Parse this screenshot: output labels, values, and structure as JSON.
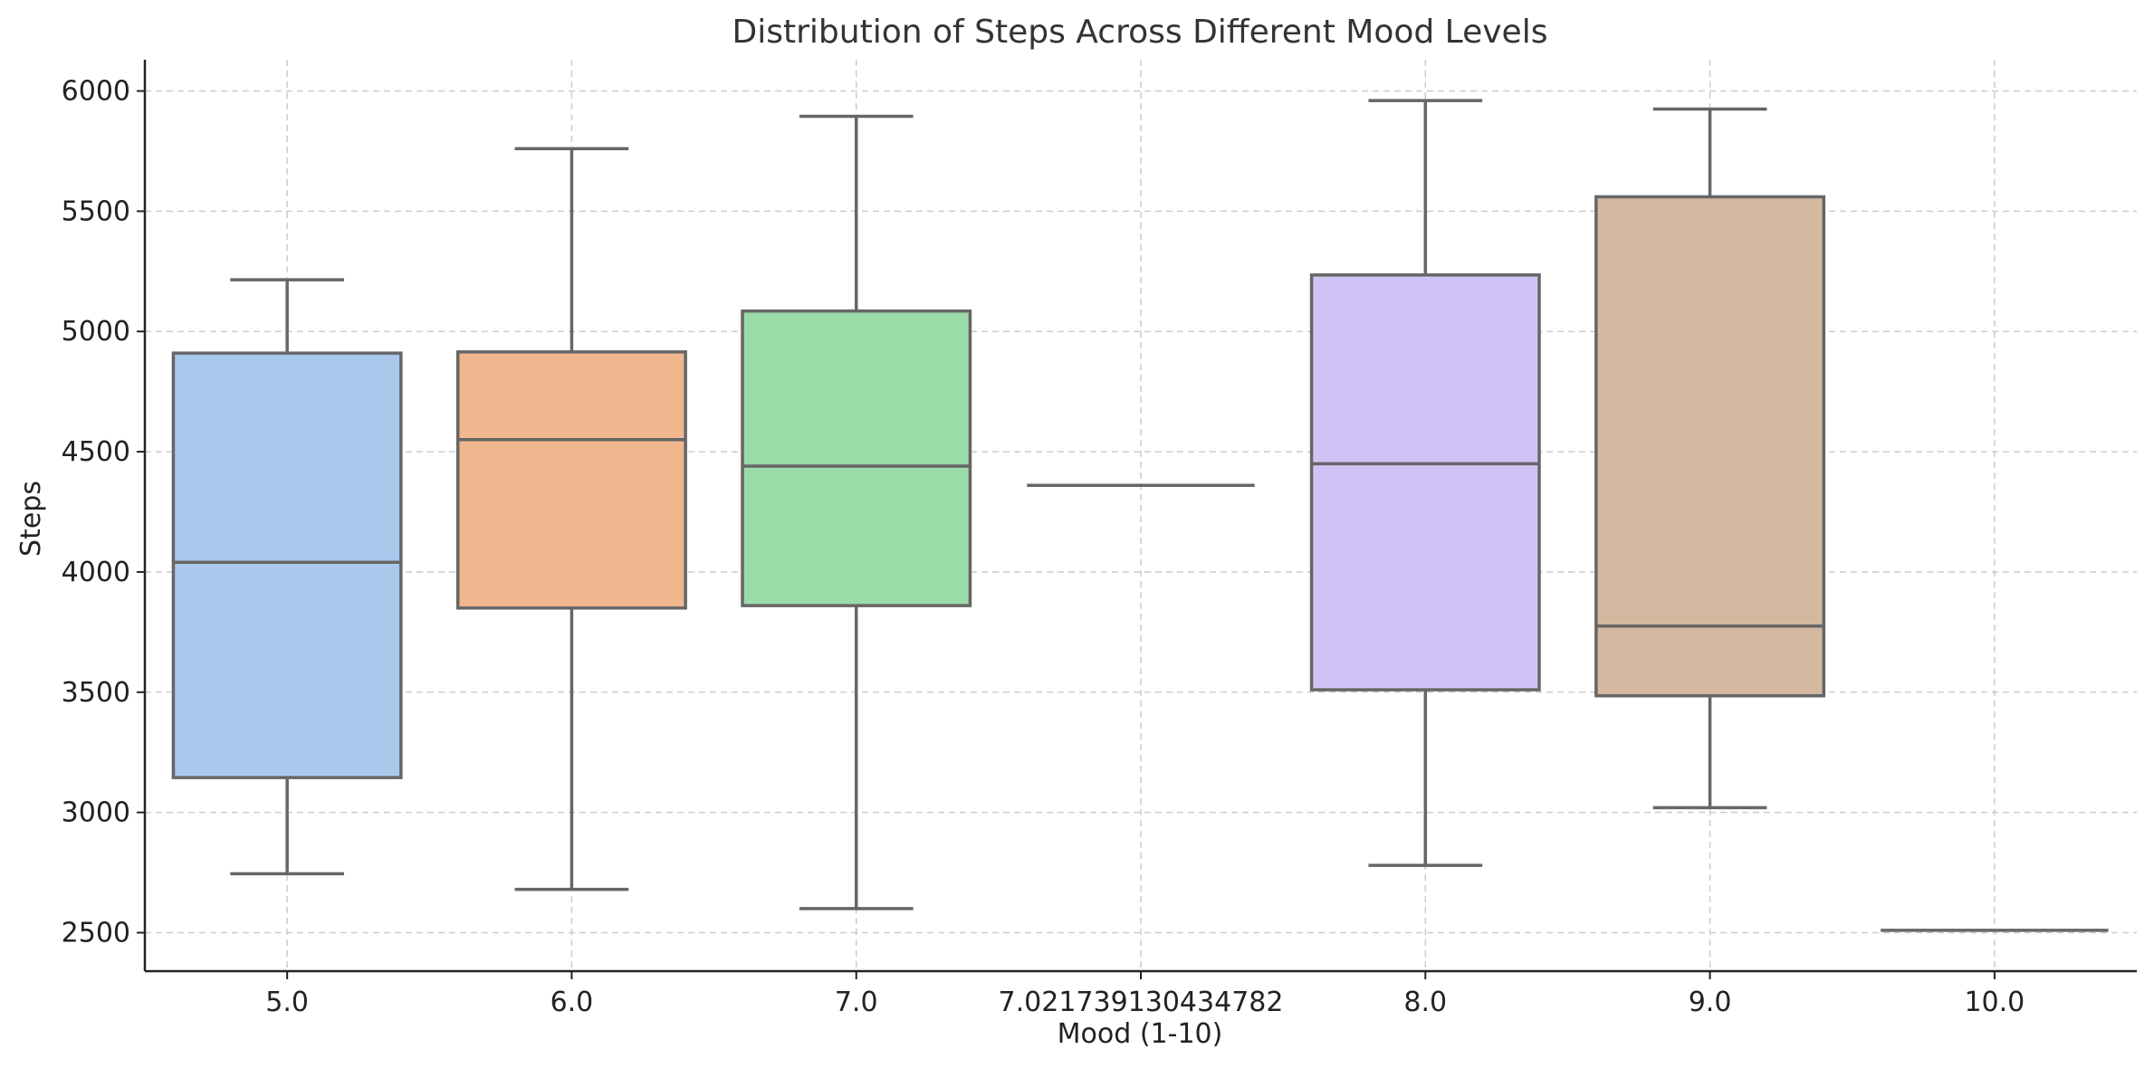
{
  "chart_data": {
    "type": "box",
    "title": "Distribution of Steps Across Different Mood Levels",
    "xlabel": "Mood (1-10)",
    "ylabel": "Steps",
    "ylim": [
      2340,
      6130
    ],
    "yticks": [
      2500,
      3000,
      3500,
      4000,
      4500,
      5000,
      5500,
      6000
    ],
    "grid": true,
    "categories": [
      "5.0",
      "6.0",
      "7.0",
      "7.021739130434782",
      "8.0",
      "9.0",
      "10.0"
    ],
    "boxes": [
      {
        "category": "5.0",
        "whisker_low": 2745,
        "q1": 3145,
        "median": 4040,
        "q3": 4910,
        "whisker_high": 5215,
        "color": "#a9c8ec"
      },
      {
        "category": "6.0",
        "whisker_low": 2680,
        "q1": 3850,
        "median": 4550,
        "q3": 4915,
        "whisker_high": 5760,
        "color": "#f0b78f"
      },
      {
        "category": "7.0",
        "whisker_low": 2600,
        "q1": 3860,
        "median": 4440,
        "q3": 5085,
        "whisker_high": 5895,
        "color": "#9adba7"
      },
      {
        "category": "7.021739130434782",
        "whisker_low": 4360,
        "q1": 4360,
        "median": 4360,
        "q3": 4360,
        "whisker_high": 4360,
        "color": "#ff9f9b"
      },
      {
        "category": "8.0",
        "whisker_low": 2780,
        "q1": 3510,
        "median": 4450,
        "q3": 5235,
        "whisker_high": 5960,
        "color": "#d0c4f6"
      },
      {
        "category": "9.0",
        "whisker_low": 3020,
        "q1": 3485,
        "median": 3775,
        "q3": 5560,
        "whisker_high": 5925,
        "color": "#d4b9a0"
      },
      {
        "category": "10.0",
        "whisker_low": 2510,
        "q1": 2510,
        "median": 2510,
        "q3": 2510,
        "whisker_high": 2510,
        "color": "#f2b3e0"
      }
    ]
  }
}
